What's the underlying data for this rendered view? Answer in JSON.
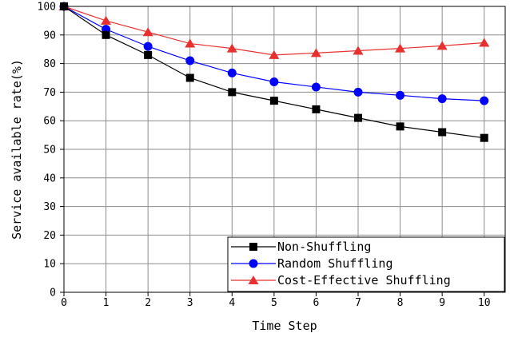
{
  "chart_data": {
    "type": "line",
    "xlabel": "Time Step",
    "ylabel": "Service available rate(%)",
    "x": [
      0,
      1,
      2,
      3,
      4,
      5,
      6,
      7,
      8,
      9,
      10
    ],
    "xlim": [
      0,
      10.5
    ],
    "ylim": [
      0,
      100
    ],
    "xticks": [
      "0",
      "1",
      "2",
      "3",
      "4",
      "5",
      "6",
      "7",
      "8",
      "9",
      "10"
    ],
    "yticks": [
      "0",
      "10",
      "20",
      "30",
      "40",
      "50",
      "60",
      "70",
      "80",
      "90",
      "100"
    ],
    "grid": true,
    "legend_position": "bottom-right",
    "series": [
      {
        "name": "Non-Shuffling",
        "color": "#000000",
        "marker": "square",
        "values": [
          100,
          90,
          83,
          75,
          70,
          67,
          64,
          61,
          58,
          56,
          54
        ]
      },
      {
        "name": "Random Shuffling",
        "color": "#0000ff",
        "marker": "circle",
        "values": [
          100,
          92,
          86,
          81,
          76.7,
          73.6,
          71.8,
          70,
          68.9,
          67.7,
          67
        ]
      },
      {
        "name": "Cost-Effective Shuffling",
        "color": "#e8312f",
        "marker": "triangle",
        "values": [
          100,
          95,
          91,
          87,
          85.3,
          83,
          83.7,
          84.5,
          85.3,
          86.2,
          87.3
        ]
      }
    ]
  }
}
